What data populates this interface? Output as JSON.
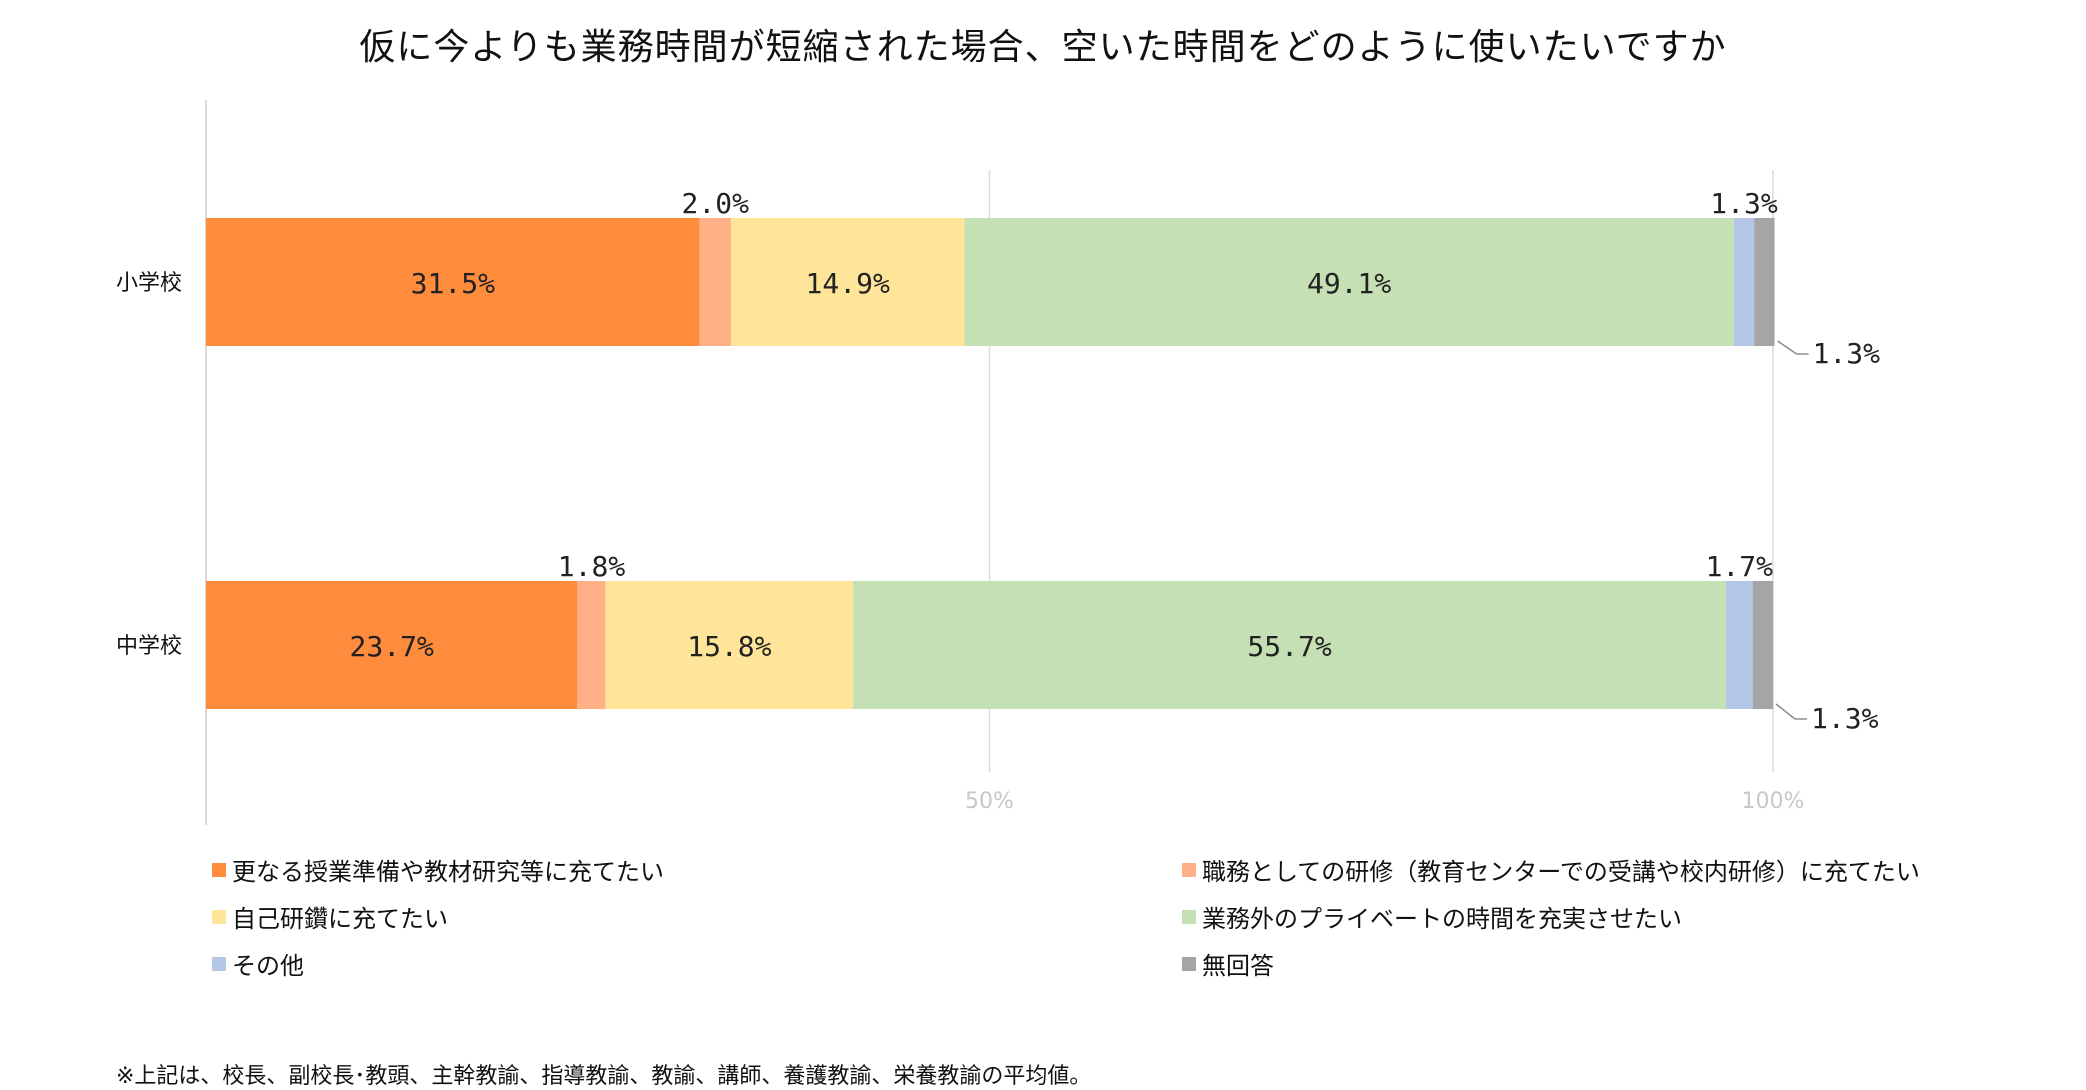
{
  "chart_data": {
    "type": "bar",
    "orientation": "horizontal",
    "stacked": true,
    "percent": true,
    "title": "仮に今よりも業務時間が短縮された場合、空いた時間をどのように使いたいですか",
    "categories": [
      "小学校",
      "中学校"
    ],
    "xlim": [
      0,
      100
    ],
    "x_ticks": [
      {
        "value": 50,
        "label": "50%"
      },
      {
        "value": 100,
        "label": "100%"
      }
    ],
    "grid": true,
    "legend_position": "bottom",
    "series": [
      {
        "name": "更なる授業準備や教材研究等に充てたい",
        "color": "#FF8B3D",
        "values": [
          31.5,
          23.7
        ],
        "labels": [
          "31.5%",
          "23.7%"
        ],
        "label_pos": "inside"
      },
      {
        "name": "職務としての研修（教育センターでの受講や校内研修）に充てたい",
        "color": "#FFB086",
        "values": [
          2.0,
          1.8
        ],
        "labels": [
          "2.0%",
          "1.8%"
        ],
        "label_pos": "above"
      },
      {
        "name": "自己研鑽に充てたい",
        "color": "#FFE599",
        "values": [
          14.9,
          15.8
        ],
        "labels": [
          "14.9%",
          "15.8%"
        ],
        "label_pos": "inside"
      },
      {
        "name": "業務外のプライベートの時間を充実させたい",
        "color": "#C5E0B4",
        "values": [
          49.1,
          55.7
        ],
        "labels": [
          "49.1%",
          "55.7%"
        ],
        "label_pos": "inside"
      },
      {
        "name": "その他",
        "color": "#B4C7E7",
        "values": [
          1.3,
          1.7
        ],
        "labels": [
          "1.3%",
          "1.7%"
        ],
        "label_pos": "above"
      },
      {
        "name": "無回答",
        "color": "#A5A5A5",
        "values": [
          1.3,
          1.3
        ],
        "labels": [
          "1.3%",
          "1.3%"
        ],
        "label_pos": "callout"
      }
    ]
  },
  "footnote": "※上記は、校長、副校長･教頭、主幹教諭、指導教諭、教諭、講師、養護教諭、栄養教諭の平均値。"
}
